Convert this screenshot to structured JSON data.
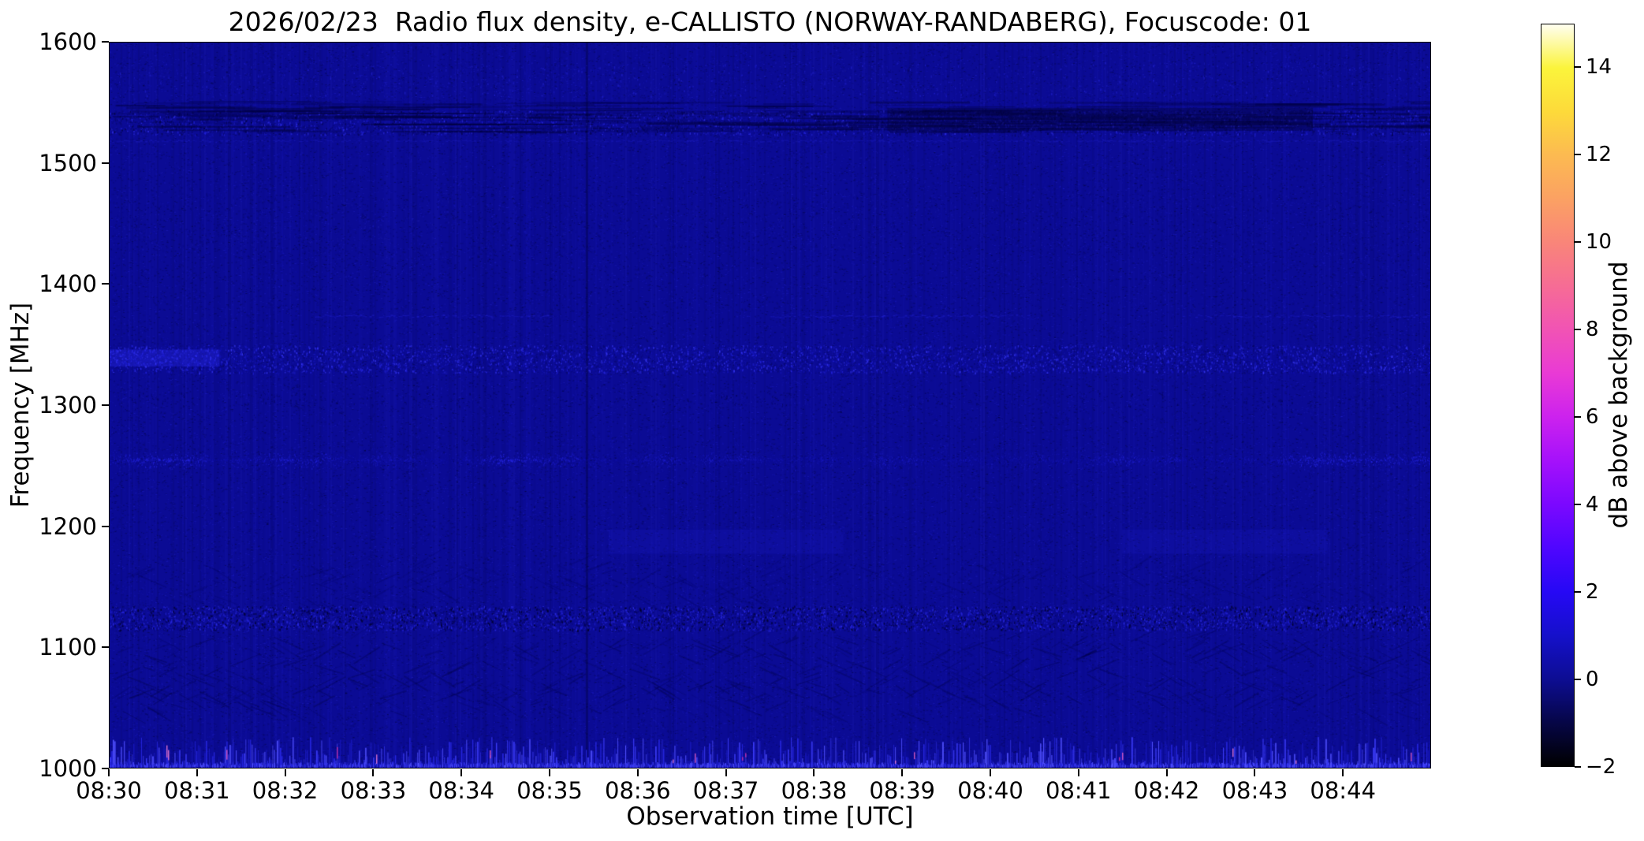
{
  "figure": {
    "title": "2026/02/23  Radio flux density, e-CALLISTO (NORWAY-RANDABERG), Focuscode: 01",
    "background_color": "#ffffff"
  },
  "chart_data": {
    "type": "heatmap",
    "title": "2026/02/23  Radio flux density, e-CALLISTO (NORWAY-RANDABERG), Focuscode: 01",
    "xlabel": "Observation time [UTC]",
    "ylabel": "Frequency [MHz]",
    "x_range": [
      "08:30:00",
      "08:45:00"
    ],
    "y_range": [
      1000,
      1600
    ],
    "base_level_db": 0.3,
    "base_color": "#0b0b94",
    "grid": false,
    "x_ticks": [
      {
        "label": "08:30",
        "time": "08:30:00"
      },
      {
        "label": "08:31",
        "time": "08:31:00"
      },
      {
        "label": "08:32",
        "time": "08:32:00"
      },
      {
        "label": "08:33",
        "time": "08:33:00"
      },
      {
        "label": "08:34",
        "time": "08:34:00"
      },
      {
        "label": "08:35",
        "time": "08:35:00"
      },
      {
        "label": "08:36",
        "time": "08:36:00"
      },
      {
        "label": "08:37",
        "time": "08:37:00"
      },
      {
        "label": "08:38",
        "time": "08:38:00"
      },
      {
        "label": "08:39",
        "time": "08:39:00"
      },
      {
        "label": "08:40",
        "time": "08:40:00"
      },
      {
        "label": "08:41",
        "time": "08:41:00"
      },
      {
        "label": "08:42",
        "time": "08:42:00"
      },
      {
        "label": "08:43",
        "time": "08:43:00"
      },
      {
        "label": "08:44",
        "time": "08:44:00"
      }
    ],
    "y_ticks": [
      1600,
      1500,
      1400,
      1300,
      1200,
      1100,
      1000
    ],
    "colorbar": {
      "label": "dB above background",
      "range": [
        -2,
        15
      ],
      "ticks": [
        {
          "value": 14,
          "label": "14"
        },
        {
          "value": 12,
          "label": "12"
        },
        {
          "value": 10,
          "label": "10"
        },
        {
          "value": 8,
          "label": "8"
        },
        {
          "value": 6,
          "label": "6"
        },
        {
          "value": 4,
          "label": "4"
        },
        {
          "value": 2,
          "label": "2"
        },
        {
          "value": 0,
          "label": "0"
        },
        {
          "value": -2,
          "label": "−2"
        }
      ],
      "colormap_stops": [
        {
          "v": 15,
          "c": "#fffef0"
        },
        {
          "v": 14,
          "c": "#fbf43b"
        },
        {
          "v": 13,
          "c": "#fdda3a"
        },
        {
          "v": 12,
          "c": "#fcba51"
        },
        {
          "v": 11,
          "c": "#fba163"
        },
        {
          "v": 10,
          "c": "#f98579"
        },
        {
          "v": 9,
          "c": "#f66c95"
        },
        {
          "v": 8,
          "c": "#f153b4"
        },
        {
          "v": 7,
          "c": "#e93ad5"
        },
        {
          "v": 6,
          "c": "#cc22ee"
        },
        {
          "v": 5,
          "c": "#a511fb"
        },
        {
          "v": 4,
          "c": "#7b08ff"
        },
        {
          "v": 3,
          "c": "#4f06ff"
        },
        {
          "v": 2,
          "c": "#2608f5"
        },
        {
          "v": 1,
          "c": "#1510cb"
        },
        {
          "v": 0,
          "c": "#0d0d93"
        },
        {
          "v": -1,
          "c": "#060647"
        },
        {
          "v": -2,
          "c": "#000000"
        }
      ]
    },
    "features": [
      {
        "type": "speckle",
        "name": "faint-band-1570",
        "freq": [
          1556,
          1584
        ],
        "density": 0.05,
        "colors": [
          "#14149e",
          "#1d1dc2"
        ]
      },
      {
        "type": "speckle",
        "name": "rfi-band-1535",
        "freq": [
          1524,
          1544
        ],
        "density": 0.22,
        "colors": [
          "#1e1ed2",
          "#2f2fe8",
          "#07076a",
          "#040448"
        ]
      },
      {
        "type": "dark_streaks",
        "name": "dark-band-1540",
        "freq": [
          1526,
          1552
        ],
        "count": 260,
        "color": "#020240",
        "alpha": 0.5
      },
      {
        "type": "dark_patch",
        "name": "dark-patch-0839",
        "freq": [
          1527,
          1546
        ],
        "time": [
          "08:38:50",
          "08:43:40"
        ],
        "color": "#020238",
        "alpha": 0.38
      },
      {
        "type": "hline",
        "name": "line-1519",
        "freq": 1519,
        "color": "#2a2ae2",
        "alpha": 0.3
      },
      {
        "type": "speckle",
        "name": "faint-band-1455",
        "freq": [
          1425,
          1480
        ],
        "density": 0.03,
        "colors": [
          "#08087c",
          "#15159e"
        ]
      },
      {
        "type": "hline_segments",
        "name": "line-1374",
        "freq": 1374,
        "segments": [
          [
            "08:32:20",
            "08:35:00"
          ],
          [
            "08:37:30",
            "08:40:30"
          ],
          [
            "08:42:20",
            "08:45:00"
          ]
        ],
        "color": "#2828e0",
        "alpha": 0.45
      },
      {
        "type": "speckle",
        "name": "rfi-band-1340",
        "freq": [
          1327,
          1350
        ],
        "density": 0.3,
        "colors": [
          "#2424de",
          "#3636f2",
          "#08086e",
          "#1212b4"
        ]
      },
      {
        "type": "bright_patch",
        "name": "bright-1340-left",
        "freq": [
          1332,
          1346
        ],
        "time": [
          "08:30:00",
          "08:31:15"
        ],
        "color": "#2b2bf0",
        "alpha": 0.35
      },
      {
        "type": "speckle",
        "name": "dots-1305",
        "freq": [
          1299,
          1311
        ],
        "density": 0.05,
        "colors": [
          "#13139c",
          "#05055e"
        ]
      },
      {
        "type": "fuzzy_line",
        "name": "rfi-line-1256",
        "freq": [
          1247,
          1263
        ],
        "color": "#2626e6",
        "density": 0.5
      },
      {
        "type": "smudge_segments",
        "name": "smudge-1188",
        "freq": [
          1177,
          1197
        ],
        "segments": [
          [
            "08:35:40",
            "08:38:20"
          ],
          [
            "08:41:30",
            "08:43:50"
          ]
        ],
        "color": "#1c1cc6",
        "alpha": 0.22
      },
      {
        "type": "speckle",
        "name": "rfi-band-1125",
        "freq": [
          1114,
          1134
        ],
        "density": 0.34,
        "colors": [
          "#2222d8",
          "#010126",
          "#2c2ce6",
          "#03034a"
        ]
      },
      {
        "type": "chevron",
        "name": "chevrons-1150",
        "freq": [
          1136,
          1168
        ],
        "count": 160,
        "color": "#05055a",
        "alpha": 0.3
      },
      {
        "type": "chevron",
        "name": "chevrons-1080",
        "freq": [
          1046,
          1108
        ],
        "count": 420,
        "color": "#04044e",
        "alpha": 0.4
      },
      {
        "type": "vline",
        "name": "vline-0835",
        "time": "08:35:25",
        "color": "#00001e",
        "alpha": 0.28
      },
      {
        "type": "bottom_spikes",
        "name": "rfi-band-1005",
        "freq": [
          1000,
          1024
        ],
        "pink_prob": 0.02,
        "blue": [
          "#2626e0",
          "#3c3cfa",
          "#1616b6",
          "#5050ff"
        ],
        "pink": [
          "#e85ec4",
          "#f07ad2",
          "#cc2fa6"
        ]
      }
    ]
  }
}
